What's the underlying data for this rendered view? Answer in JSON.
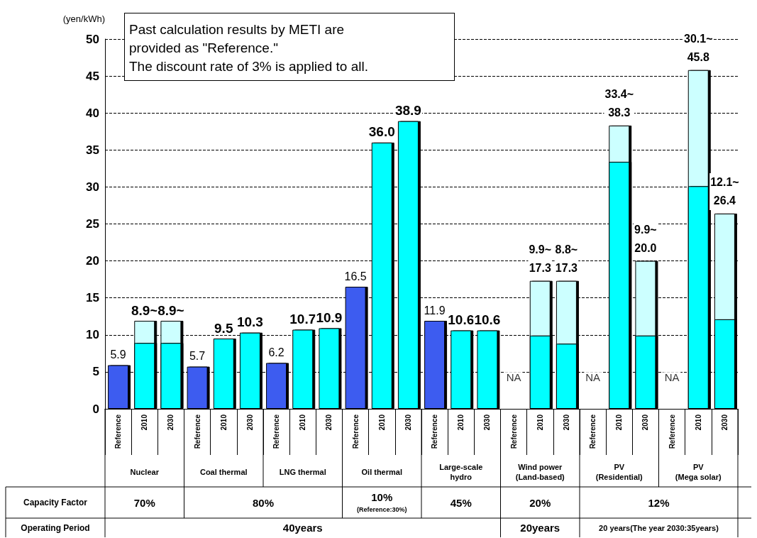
{
  "chart_data": {
    "type": "bar",
    "ylabel": "(yen/kWh)",
    "categories": [
      "Reference",
      "2010",
      "2030",
      "Reference",
      "2010",
      "2030",
      "Reference",
      "2010",
      "2030",
      "Reference",
      "2010",
      "2030",
      "Reference",
      "2010",
      "2030",
      "Reference",
      "2010",
      "2030",
      "Reference",
      "2010",
      "2030",
      "Reference",
      "2010",
      "2030"
    ],
    "series": [
      {
        "color": "#3d5cf0",
        "values": [
          5.9,
          null,
          null,
          5.7,
          null,
          null,
          6.2,
          null,
          null,
          16.5,
          null,
          null,
          11.9,
          null,
          null,
          null,
          null,
          null,
          null,
          null,
          null,
          null,
          null,
          null
        ],
        "value_labels": [
          "5.9",
          null,
          null,
          "5.7",
          null,
          null,
          "6.2",
          null,
          null,
          "16.5",
          null,
          null,
          "11.9",
          null,
          null,
          "NA",
          null,
          null,
          "NA",
          null,
          null,
          "NA",
          null,
          null
        ]
      },
      {
        "color": "#ccffff",
        "values": [
          null,
          11.9,
          11.9,
          null,
          null,
          null,
          null,
          null,
          null,
          null,
          null,
          null,
          null,
          null,
          null,
          null,
          17.3,
          17.3,
          null,
          38.3,
          20.0,
          null,
          45.8,
          26.4
        ],
        "value_labels": [
          null,
          null,
          null,
          null,
          null,
          null,
          null,
          null,
          null,
          null,
          null,
          null,
          null,
          null,
          null,
          null,
          "9.9~\n17.3",
          "8.8~\n17.3",
          null,
          "33.4~\n38.3",
          "9.9~\n20.0",
          null,
          "30.1~\n45.8",
          "12.1~\n26.4"
        ]
      },
      {
        "color": "#00ffff",
        "values": [
          null,
          8.9,
          8.9,
          null,
          9.5,
          10.3,
          null,
          10.7,
          10.9,
          null,
          36.0,
          38.9,
          null,
          10.6,
          10.6,
          null,
          9.9,
          8.8,
          null,
          33.4,
          9.9,
          null,
          30.1,
          12.1
        ],
        "value_labels": [
          null,
          "8.9~",
          "8.9~",
          null,
          "9.5",
          "10.3",
          null,
          "10.7",
          "10.9",
          null,
          "36.0",
          "38.9",
          null,
          "10.6",
          "10.6",
          null,
          null,
          null,
          null,
          null,
          null,
          null,
          null,
          null
        ]
      }
    ],
    "ylim": [
      0,
      50
    ],
    "yticks": [
      0,
      5,
      10,
      15,
      20,
      25,
      30,
      35,
      40,
      45,
      50
    ],
    "grid": "y",
    "annotations": [
      "Past calculation results by METI are\nprovided as \"Reference.\"\nThe discount rate of 3% is applied to all.",
      "Nuclear",
      "Coal thermal",
      "LNG thermal",
      "Oil thermal",
      "Large-scale\nhydro",
      "Wind power\n(Land-based)",
      "PV\n(Residential)",
      "PV\n(Mega solar)",
      "Capacity Factor",
      "70%",
      "80%",
      "10%",
      "(Reference:30%)",
      "45%",
      "20%",
      "12%",
      "Operating Period",
      "40years",
      "20years",
      "20 years(The year 2030:35years)"
    ]
  }
}
